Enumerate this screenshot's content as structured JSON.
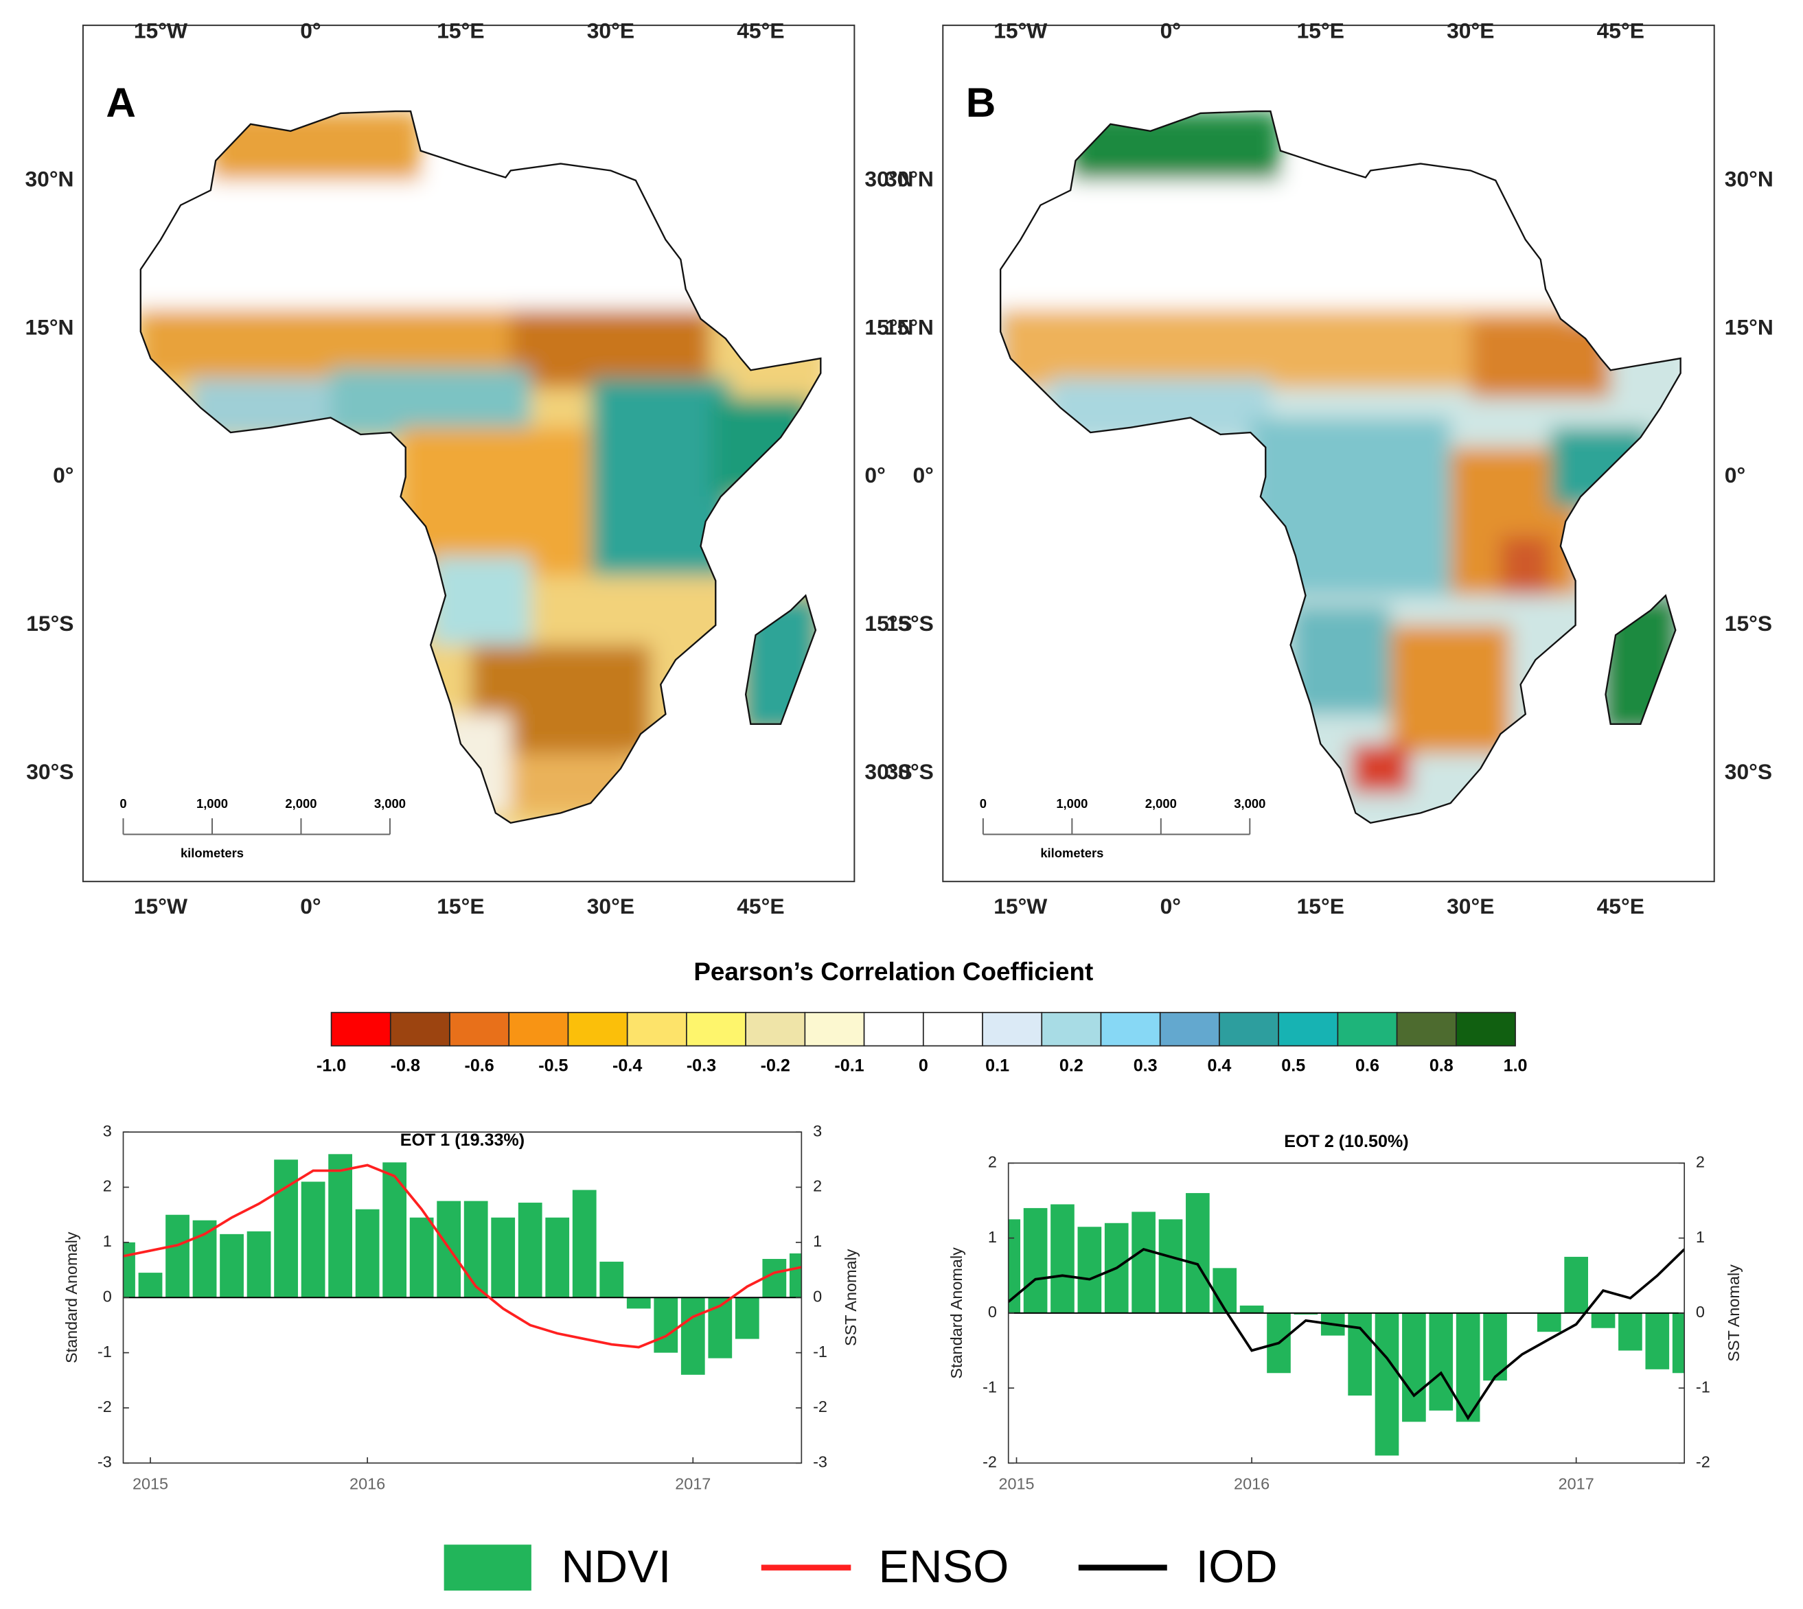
{
  "maps": [
    {
      "label": "A",
      "lon_ticks": [
        "15°W",
        "0°",
        "15°E",
        "30°E",
        "45°E"
      ],
      "lat_ticks": [
        "30°N",
        "15°N",
        "0°",
        "15°S",
        "30°S"
      ],
      "scale_bar": {
        "ticks": [
          0,
          {
            "value": 1000,
            "label": "1,000"
          },
          {
            "value": 2000,
            "label": "2,000"
          },
          {
            "value": 3000,
            "label": "3,000"
          }
        ],
        "unit": "kilometers"
      }
    },
    {
      "label": "B",
      "lon_ticks": [
        "15°W",
        "0°",
        "15°E",
        "30°E",
        "45°E"
      ],
      "lat_ticks": [
        "30°N",
        "15°N",
        "0°",
        "15°S",
        "30°S"
      ],
      "scale_bar": {
        "ticks": [
          0,
          {
            "value": 1000,
            "label": "1,000"
          },
          {
            "value": 2000,
            "label": "2,000"
          },
          {
            "value": 3000,
            "label": "3,000"
          }
        ],
        "unit": "kilometers"
      }
    }
  ],
  "colorbar": {
    "title": "Pearson’s Correlation Coefficient",
    "colors": [
      "#ff0000",
      "#9c4410",
      "#e8701a",
      "#f89414",
      "#fbbf0a",
      "#fde36a",
      "#fef56c",
      "#efe4a8",
      "#fcf8d0",
      "#ffffff",
      "#ffffff",
      "#dbeaf6",
      "#a8dce5",
      "#87d8f5",
      "#63a8cf",
      "#2d9e9e",
      "#17b3b3",
      "#1eb47a",
      "#4d6b2f",
      "#116011"
    ],
    "ticks": [
      {
        "value": -1.0,
        "label": "-1.0"
      },
      -0.8,
      -0.6,
      -0.5,
      -0.4,
      -0.3,
      -0.2,
      -0.1,
      0,
      0.1,
      0.2,
      0.3,
      0.4,
      0.5,
      0.6,
      0.8,
      {
        "value": 1.0,
        "label": "1.0"
      }
    ]
  },
  "chart_data": [
    {
      "type": "bar",
      "title": "EOT 1 (19.33%)",
      "ylabel": "Standard Anomaly",
      "y2label": "SST Anomaly",
      "xlim": [
        0,
        25
      ],
      "xticks": [
        {
          "value": 1,
          "label": "2015"
        },
        {
          "value": 9,
          "label": "2016"
        },
        {
          "value": 21,
          "label": "2017"
        }
      ],
      "ylim": [
        -3,
        3
      ],
      "yticks": [
        -3,
        -2,
        -1,
        0,
        1,
        2,
        3
      ],
      "y2lim": [
        -3,
        3
      ],
      "y2ticks": [
        -3,
        -2,
        -1,
        0,
        1,
        2,
        3
      ],
      "series": [
        {
          "name": "NDVI",
          "type": "bar",
          "color": "#22b55a",
          "values": [
            1.0,
            0.45,
            1.5,
            1.4,
            1.15,
            1.2,
            2.5,
            2.1,
            2.6,
            1.6,
            2.45,
            1.45,
            1.75,
            1.75,
            1.45,
            1.72,
            1.45,
            1.95,
            0.65,
            -0.2,
            -1.0,
            -1.4,
            -1.1,
            -0.75,
            0.7,
            0.8
          ]
        },
        {
          "name": "ENSO",
          "type": "line",
          "color": "#ff2020",
          "axis": "y2",
          "values": [
            0.75,
            0.85,
            0.95,
            1.15,
            1.45,
            1.7,
            2.0,
            2.3,
            2.3,
            2.4,
            2.2,
            1.6,
            0.9,
            0.2,
            -0.2,
            -0.5,
            -0.65,
            -0.75,
            -0.85,
            -0.9,
            -0.7,
            -0.35,
            -0.15,
            0.2,
            0.45,
            0.55
          ]
        }
      ]
    },
    {
      "type": "bar",
      "title": "EOT 2 (10.50%)",
      "ylabel": "Standard Anomaly",
      "y2label": "SST Anomaly",
      "xlim": [
        0,
        25
      ],
      "xticks": [
        {
          "value": 0.3,
          "label": "2015"
        },
        {
          "value": 9,
          "label": "2016"
        },
        {
          "value": 21,
          "label": "2017"
        }
      ],
      "ylim": [
        -2,
        2
      ],
      "yticks": [
        -2,
        -1,
        0,
        1,
        2
      ],
      "y2lim": [
        -2,
        2
      ],
      "y2ticks": [
        -2,
        -1,
        0,
        1,
        2
      ],
      "series": [
        {
          "name": "NDVI",
          "type": "bar",
          "color": "#22b55a",
          "values": [
            1.25,
            1.4,
            1.45,
            1.15,
            1.2,
            1.35,
            1.25,
            1.6,
            0.6,
            0.1,
            -0.8,
            -0.02,
            -0.3,
            -1.1,
            -1.9,
            -1.45,
            -1.3,
            -1.45,
            -0.9,
            0,
            -0.25,
            0.75,
            -0.2,
            -0.5,
            -0.75,
            -0.8
          ]
        },
        {
          "name": "IOD",
          "type": "line",
          "color": "#000000",
          "axis": "y2",
          "values": [
            0.15,
            0.45,
            0.5,
            0.45,
            0.6,
            0.85,
            0.75,
            0.65,
            0.05,
            -0.5,
            -0.4,
            -0.1,
            -0.15,
            -0.2,
            -0.6,
            -1.1,
            -0.8,
            -1.4,
            -0.85,
            -0.55,
            -0.35,
            -0.15,
            0.3,
            0.2,
            0.5,
            0.85
          ]
        }
      ]
    }
  ]
}
